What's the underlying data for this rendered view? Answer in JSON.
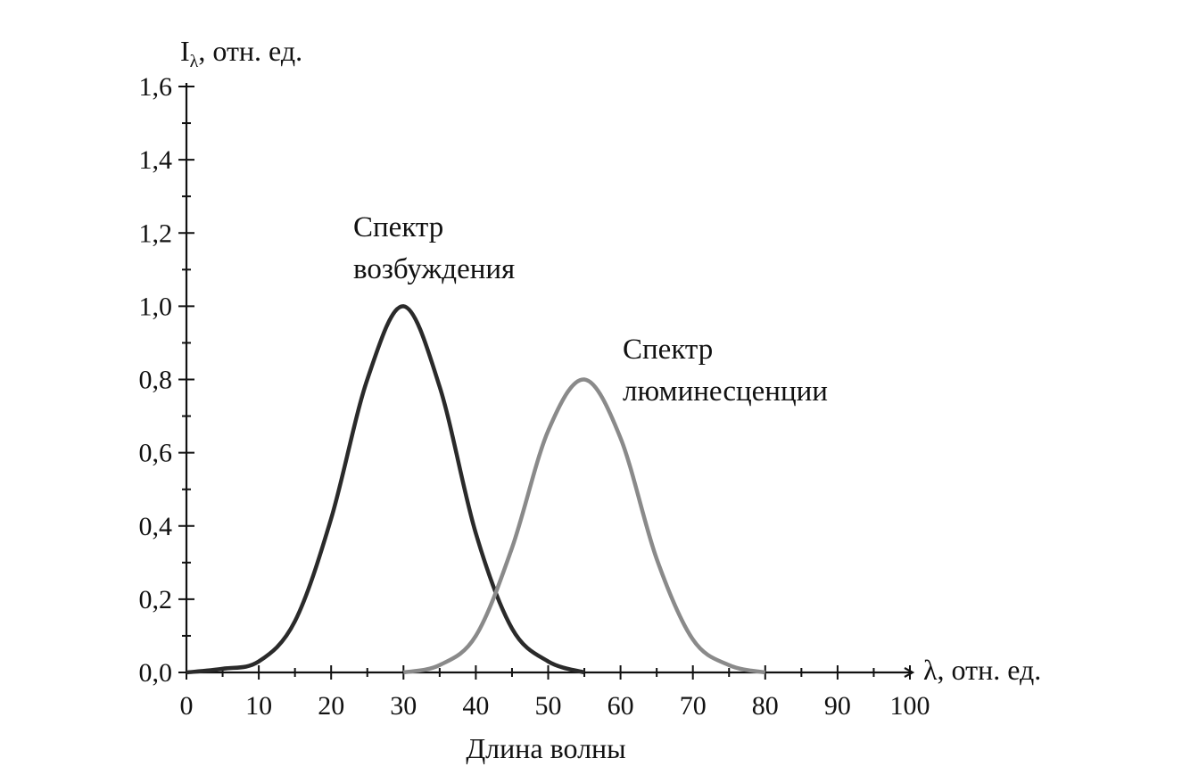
{
  "chart_data": {
    "type": "line",
    "title": "",
    "xlabel": "Длина волны",
    "x_axis_unit_label": "λ, отн. ед.",
    "ylabel_main": "I",
    "ylabel_sub": "λ",
    "ylabel_rest": ", отн. ед.",
    "xlim": [
      0,
      100
    ],
    "ylim": [
      0,
      1.6
    ],
    "x_ticks": [
      0,
      10,
      20,
      30,
      40,
      50,
      60,
      70,
      80,
      90,
      100
    ],
    "x_tick_labels": [
      "0",
      "10",
      "20",
      "30",
      "40",
      "50",
      "60",
      "70",
      "80",
      "90",
      "100"
    ],
    "y_ticks": [
      0,
      0.2,
      0.4,
      0.6,
      0.8,
      1.0,
      1.2,
      1.4,
      1.6
    ],
    "y_tick_labels": [
      "0,0",
      "0,2",
      "0,4",
      "0,6",
      "0,8",
      "1,0",
      "1,2",
      "1,4",
      "1,6"
    ],
    "grid": false,
    "series": [
      {
        "label_line1": "Спектр",
        "label_line2": "возбуждения",
        "color": "#2a2a2a",
        "x": [
          0,
          5,
          10,
          15,
          20,
          25,
          30,
          35,
          40,
          45,
          50,
          55
        ],
        "y": [
          0.0,
          0.01,
          0.03,
          0.14,
          0.42,
          0.8,
          1.0,
          0.78,
          0.38,
          0.12,
          0.03,
          0.0
        ]
      },
      {
        "label_line1": "Спектр",
        "label_line2": "люминесценции",
        "color": "#8a8a8a",
        "x": [
          30,
          35,
          40,
          45,
          50,
          55,
          60,
          65,
          70,
          75,
          80
        ],
        "y": [
          0.0,
          0.02,
          0.1,
          0.34,
          0.66,
          0.8,
          0.64,
          0.31,
          0.09,
          0.02,
          0.0
        ]
      }
    ]
  }
}
